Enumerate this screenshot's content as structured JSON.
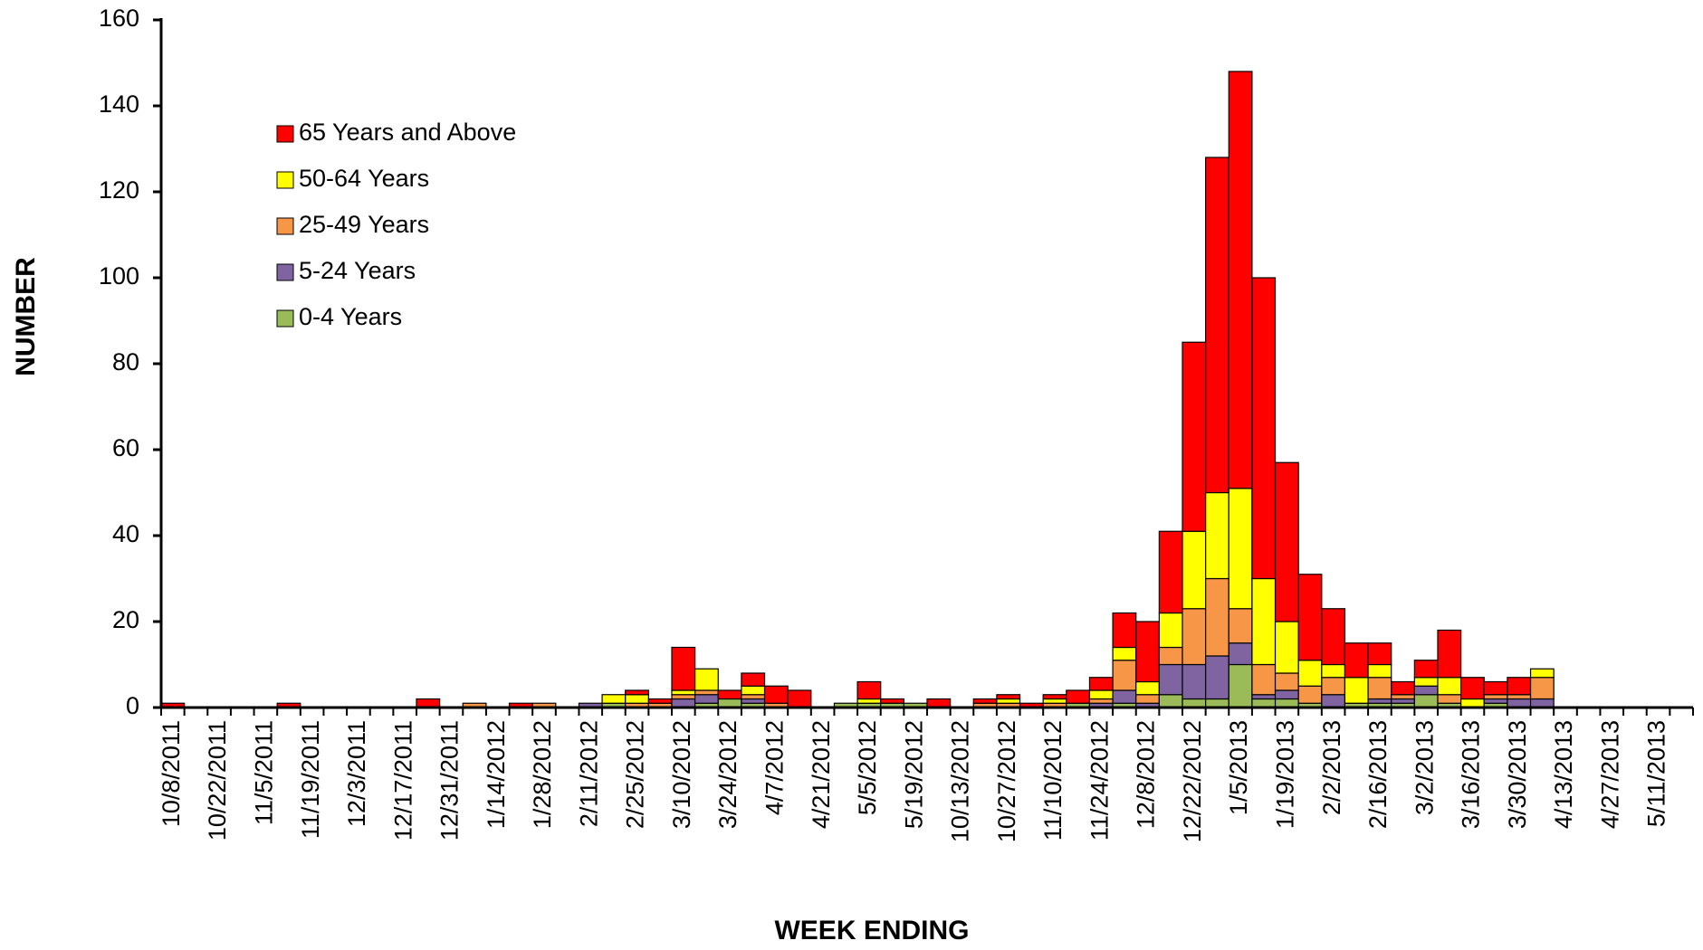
{
  "chart_data": {
    "type": "stacked_bar",
    "y_label": "NUMBER",
    "x_label": "WEEK ENDING",
    "categories": [
      "10/8/2011",
      null,
      "10/22/2011",
      null,
      "11/5/2011",
      null,
      "11/19/2011",
      null,
      "12/3/2011",
      null,
      "12/17/2011",
      null,
      "12/31/2011",
      null,
      "1/14/2012",
      null,
      "1/28/2012",
      null,
      "2/11/2012",
      null,
      "2/25/2012",
      null,
      "3/10/2012",
      null,
      "3/24/2012",
      null,
      "4/7/2012",
      null,
      "4/21/2012",
      null,
      "5/5/2012",
      null,
      "5/19/2012",
      null,
      "10/13/2012",
      null,
      "10/27/2012",
      null,
      "11/10/2012",
      null,
      "11/24/2012",
      null,
      "12/8/2012",
      null,
      "12/22/2012",
      null,
      "1/5/2013",
      null,
      "1/19/2013",
      null,
      "2/2/2013",
      null,
      "2/16/2013",
      null,
      "3/2/2013",
      null,
      "3/16/2013",
      null,
      "3/30/2013",
      null,
      "4/13/2013",
      null,
      "4/27/2013",
      null,
      "5/11/2013",
      null
    ],
    "series": [
      {
        "name": "0-4 Years",
        "color": "#9bbb59",
        "values": [
          0,
          0,
          0,
          0,
          0,
          0,
          0,
          0,
          0,
          0,
          0,
          0,
          0,
          0,
          0,
          0,
          0,
          0,
          0,
          1,
          0,
          0,
          0,
          1,
          2,
          1,
          0,
          0,
          0,
          1,
          1,
          1,
          1,
          0,
          0,
          0,
          0,
          0,
          0,
          1,
          0,
          1,
          0,
          3,
          2,
          2,
          10,
          2,
          2,
          1,
          0,
          1,
          1,
          1,
          3,
          1,
          0,
          1,
          0,
          0,
          0,
          0,
          0,
          0,
          0,
          0
        ]
      },
      {
        "name": "5-24 Years",
        "color": "#8064a2",
        "values": [
          0,
          0,
          0,
          0,
          0,
          0,
          0,
          0,
          0,
          0,
          0,
          0,
          0,
          0,
          0,
          0,
          0,
          0,
          1,
          0,
          0,
          0,
          2,
          2,
          0,
          1,
          0,
          0,
          0,
          0,
          0,
          0,
          0,
          0,
          0,
          0,
          0,
          0,
          0,
          0,
          1,
          3,
          1,
          7,
          8,
          10,
          5,
          1,
          2,
          0,
          3,
          0,
          1,
          1,
          2,
          0,
          0,
          1,
          2,
          2,
          0,
          0,
          0,
          0,
          0,
          0
        ]
      },
      {
        "name": "25-49 Years",
        "color": "#f79646",
        "values": [
          0,
          0,
          0,
          0,
          0,
          0,
          0,
          0,
          0,
          0,
          0,
          0,
          0,
          1,
          0,
          0,
          1,
          0,
          0,
          0,
          1,
          1,
          1,
          1,
          0,
          1,
          1,
          0,
          0,
          0,
          0,
          0,
          0,
          0,
          0,
          1,
          1,
          0,
          1,
          0,
          1,
          7,
          2,
          4,
          13,
          18,
          8,
          7,
          4,
          4,
          4,
          0,
          5,
          1,
          0,
          2,
          0,
          1,
          1,
          5,
          0,
          0,
          0,
          0,
          0,
          0
        ]
      },
      {
        "name": "50-64 Years",
        "color": "#ffff00",
        "values": [
          0,
          0,
          0,
          0,
          0,
          0,
          0,
          0,
          0,
          0,
          0,
          0,
          0,
          0,
          0,
          0,
          0,
          0,
          0,
          2,
          2,
          0,
          1,
          5,
          0,
          2,
          0,
          0,
          0,
          0,
          1,
          0,
          0,
          0,
          0,
          0,
          1,
          0,
          1,
          0,
          2,
          3,
          3,
          8,
          18,
          20,
          28,
          20,
          12,
          6,
          3,
          6,
          3,
          0,
          2,
          4,
          2,
          0,
          0,
          2,
          0,
          0,
          0,
          0,
          0,
          0
        ]
      },
      {
        "name": "65 Years and Above",
        "color": "#ff0000",
        "values": [
          1,
          0,
          0,
          0,
          0,
          1,
          0,
          0,
          0,
          0,
          0,
          2,
          0,
          0,
          0,
          1,
          0,
          0,
          0,
          0,
          1,
          1,
          10,
          0,
          2,
          3,
          4,
          4,
          0,
          0,
          4,
          1,
          0,
          2,
          0,
          1,
          1,
          1,
          1,
          3,
          3,
          8,
          14,
          19,
          44,
          78,
          97,
          70,
          37,
          20,
          13,
          8,
          5,
          3,
          4,
          11,
          5,
          3,
          4,
          0,
          0,
          0,
          0,
          0,
          0,
          0
        ]
      }
    ],
    "ylim": [
      0,
      160
    ],
    "yticks": [
      0,
      20,
      40,
      60,
      80,
      100,
      120,
      140,
      160
    ]
  }
}
